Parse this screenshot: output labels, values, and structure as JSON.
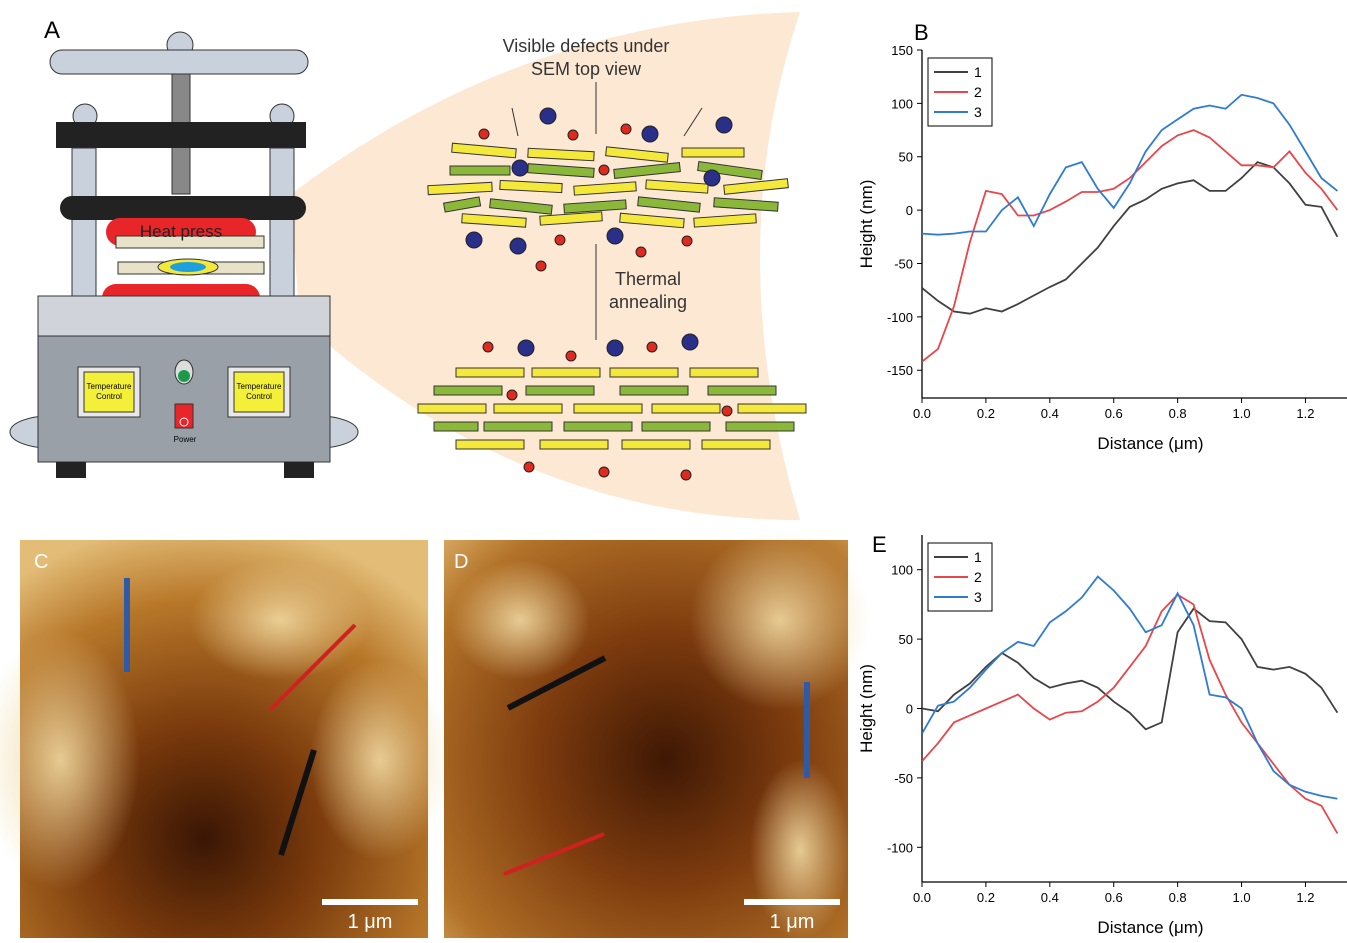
{
  "panels": {
    "A": {
      "label": "A",
      "heat_press": "Heat press",
      "temperature_control_left": [
        "Temperature",
        "Control"
      ],
      "temperature_control_right": [
        "Temperature",
        "Control"
      ],
      "power": "Power",
      "defects_caption": [
        "Visible defects under",
        "SEM top view"
      ],
      "annealing_caption": [
        "Thermal",
        "annealing"
      ]
    },
    "C": {
      "label": "C",
      "scale_bar": "1 μm"
    },
    "D": {
      "label": "D",
      "scale_bar": "1 μm"
    }
  },
  "chart_data": [
    {
      "type": "line",
      "panel_label": "B",
      "x_label": "Distance (μm)",
      "y_label": "Height (nm)",
      "xlim": [
        0,
        1.33
      ],
      "ylim": [
        -176,
        150
      ],
      "xticks": [
        {
          "value": 0,
          "label": "0.0"
        },
        0.2,
        0.4,
        0.6,
        0.8,
        {
          "value": 1,
          "label": "1.0"
        },
        1.2
      ],
      "yticks": [
        -150,
        -100,
        -50,
        0,
        50,
        100,
        150
      ],
      "x": [
        0,
        0.05,
        0.1,
        0.15,
        0.2,
        0.25,
        0.3,
        0.35,
        0.4,
        0.45,
        0.5,
        0.55,
        0.6,
        0.65,
        0.7,
        0.75,
        0.8,
        0.85,
        0.9,
        0.95,
        1,
        1.05,
        1.1,
        1.15,
        1.2,
        1.25,
        1.3
      ],
      "series": [
        {
          "name": "1",
          "color": "#404040",
          "values": [
            -73,
            -85,
            -95,
            -97,
            -92,
            -95,
            -88,
            -80,
            -72,
            -65,
            -50,
            -35,
            -15,
            3,
            10,
            20,
            25,
            28,
            18,
            18,
            30,
            45,
            40,
            25,
            5,
            3,
            -25
          ]
        },
        {
          "name": "2",
          "color": "#e8464a",
          "values": [
            -142,
            -130,
            -90,
            -30,
            18,
            15,
            -5,
            -5,
            0,
            8,
            17,
            17,
            20,
            30,
            45,
            60,
            70,
            75,
            68,
            55,
            42,
            42,
            40,
            55,
            35,
            20,
            0
          ]
        },
        {
          "name": "3",
          "color": "#2e7bd6",
          "values": [
            -22,
            -23,
            -22,
            -20,
            -20,
            0,
            12,
            -15,
            15,
            40,
            45,
            20,
            2,
            25,
            55,
            75,
            85,
            95,
            98,
            95,
            108,
            105,
            100,
            80,
            55,
            30,
            18
          ]
        }
      ]
    },
    {
      "type": "line",
      "panel_label": "E",
      "x_label": "Distance (μm)",
      "y_label": "Height (nm)",
      "xlim": [
        0,
        1.33
      ],
      "ylim": [
        -125,
        125
      ],
      "xticks": [
        {
          "value": 0,
          "label": "0.0"
        },
        0.2,
        0.4,
        0.6,
        0.8,
        {
          "value": 1,
          "label": "1.0"
        },
        1.2
      ],
      "yticks": [
        -100,
        -50,
        0,
        50,
        100
      ],
      "x": [
        0,
        0.05,
        0.1,
        0.15,
        0.2,
        0.25,
        0.3,
        0.35,
        0.4,
        0.45,
        0.5,
        0.55,
        0.6,
        0.65,
        0.7,
        0.75,
        0.8,
        0.85,
        0.9,
        0.95,
        1,
        1.05,
        1.1,
        1.15,
        1.2,
        1.25,
        1.3
      ],
      "series": [
        {
          "name": "1",
          "color": "#404040",
          "values": [
            0,
            -2,
            10,
            18,
            30,
            40,
            33,
            22,
            15,
            18,
            20,
            15,
            5,
            -3,
            -15,
            -10,
            55,
            72,
            63,
            62,
            50,
            30,
            28,
            30,
            25,
            15,
            -3
          ]
        },
        {
          "name": "2",
          "color": "#e8464a",
          "values": [
            -38,
            -25,
            -10,
            -5,
            0,
            5,
            10,
            0,
            -8,
            -3,
            -2,
            5,
            15,
            30,
            45,
            70,
            82,
            75,
            35,
            10,
            -10,
            -25,
            -40,
            -55,
            -65,
            -70,
            -90
          ]
        },
        {
          "name": "3",
          "color": "#2e7bd6",
          "values": [
            -18,
            2,
            5,
            15,
            28,
            40,
            48,
            45,
            62,
            70,
            80,
            95,
            85,
            72,
            55,
            60,
            83,
            60,
            10,
            8,
            0,
            -25,
            -45,
            -55,
            -60,
            -63,
            -65
          ]
        }
      ]
    }
  ]
}
